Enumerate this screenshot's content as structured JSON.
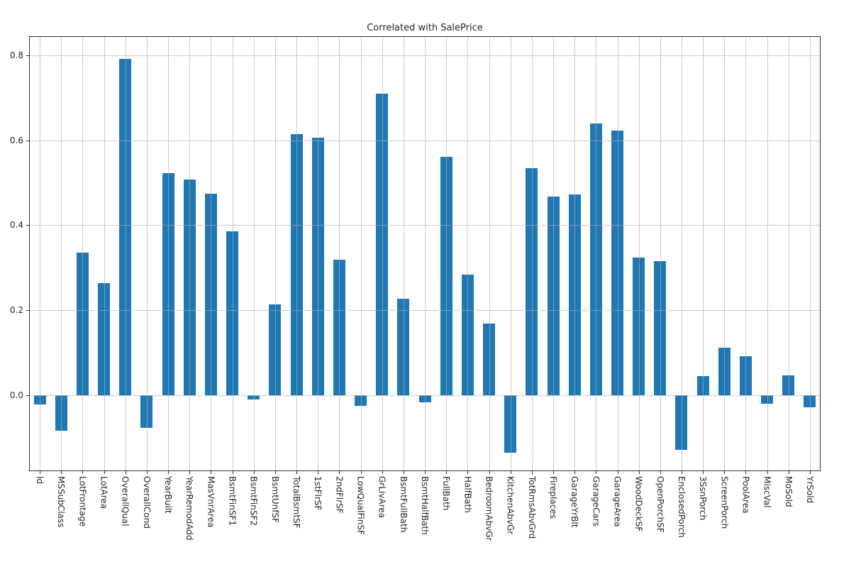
{
  "figure": {
    "background": "#ffffff",
    "spine_color": "#333333",
    "text_color": "#262626",
    "grid_color_over_white": "rgba(176,176,176,0.65)"
  },
  "chart_data": {
    "type": "bar",
    "title": "Correlated with SalePrice",
    "xlabel": "",
    "ylabel": "",
    "bar_color": "#1f77b4",
    "grid": true,
    "grid_on_top": true,
    "legend_position": "none",
    "ylim": [
      -0.179,
      0.845
    ],
    "yticks": [
      0.0,
      0.2,
      0.4,
      0.6,
      0.8
    ],
    "ytick_labels": [
      "0.0",
      "0.2",
      "0.4",
      "0.6",
      "0.8"
    ],
    "xtick_rotation": "vertical-top-to-bottom",
    "categories": [
      "Id",
      "MSSubClass",
      "LotFrontage",
      "LotArea",
      "OverallQual",
      "OverallCond",
      "YearBuilt",
      "YearRemodAdd",
      "MasVnrArea",
      "BsmtFinSF1",
      "BsmtFinSF2",
      "BsmtUnfSF",
      "TotalBsmtSF",
      "1stFlrSF",
      "2ndFlrSF",
      "LowQualFinSF",
      "GrLivArea",
      "BsmtFullBath",
      "BsmtHalfBath",
      "FullBath",
      "HalfBath",
      "BedroomAbvGr",
      "KitchenAbvGr",
      "TotRmsAbvGrd",
      "Fireplaces",
      "GarageYrBlt",
      "GarageCars",
      "GarageArea",
      "WoodDeckSF",
      "OpenPorchSF",
      "EnclosedPorch",
      "3SsnPorch",
      "ScreenPorch",
      "PoolArea",
      "MiscVal",
      "MoSold",
      "YrSold"
    ],
    "values": [
      -0.022,
      -0.084,
      0.335,
      0.264,
      0.791,
      -0.078,
      0.523,
      0.507,
      0.475,
      0.386,
      -0.011,
      0.214,
      0.614,
      0.606,
      0.319,
      -0.026,
      0.709,
      0.227,
      -0.017,
      0.561,
      0.284,
      0.168,
      -0.136,
      0.534,
      0.467,
      0.472,
      0.64,
      0.623,
      0.324,
      0.316,
      -0.129,
      0.045,
      0.111,
      0.092,
      -0.021,
      0.046,
      -0.029
    ]
  }
}
